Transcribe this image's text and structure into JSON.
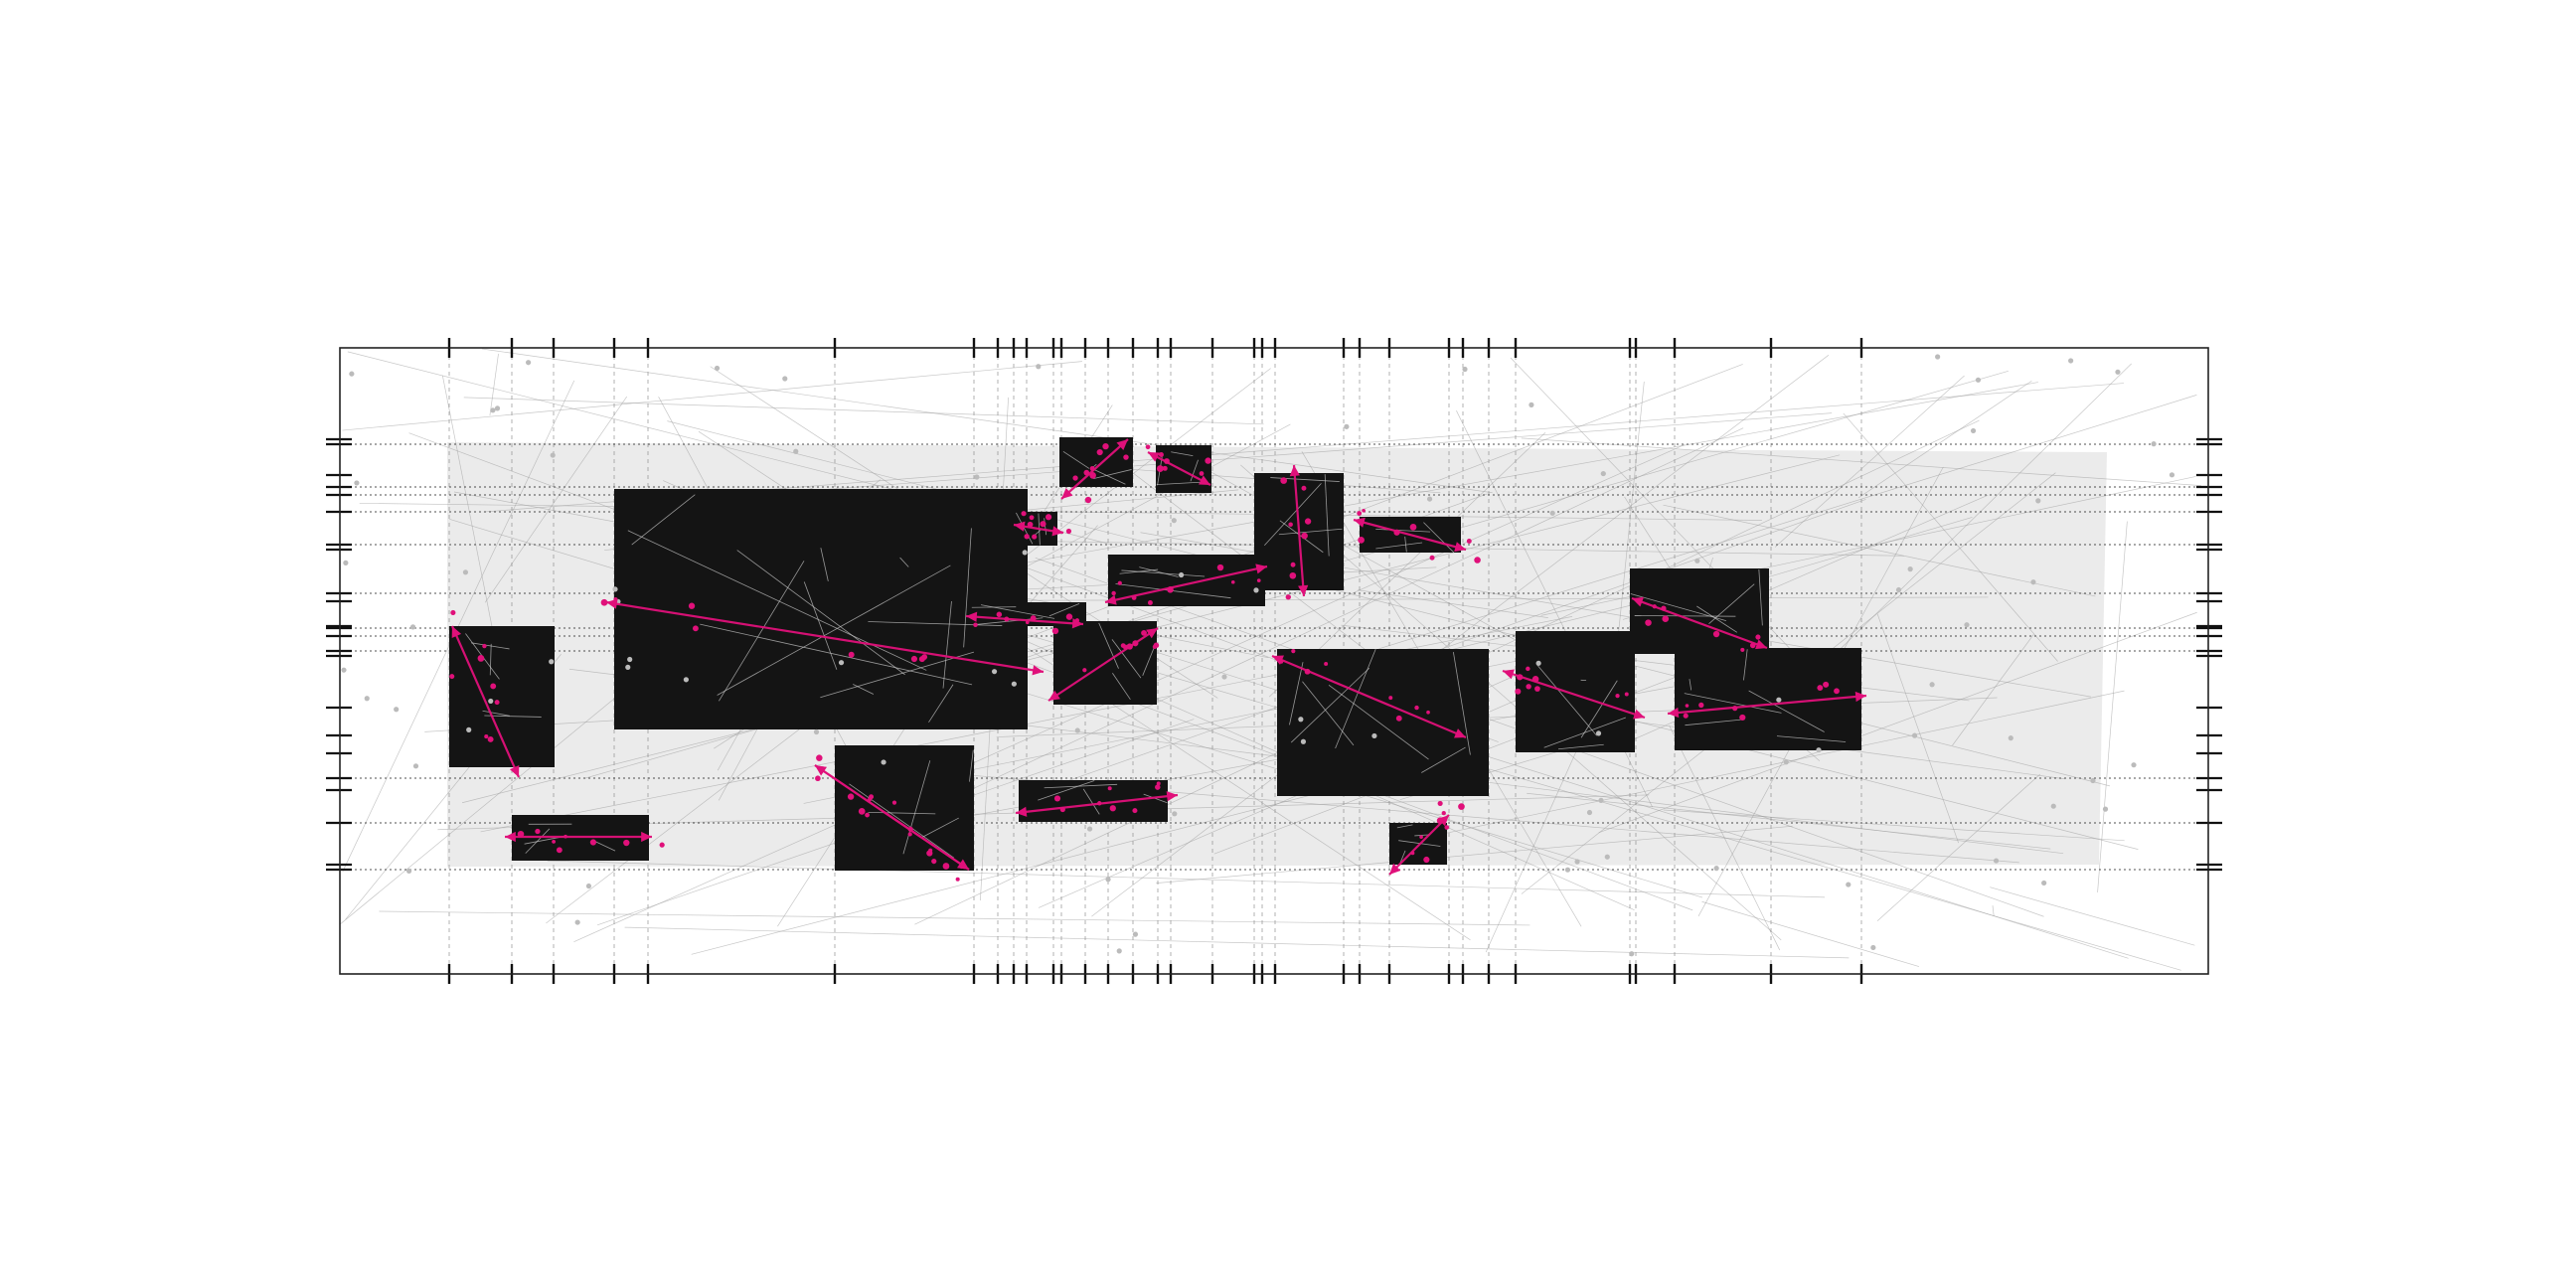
{
  "artwork": {
    "colors": {
      "background": "#ffffff",
      "frame": "#222222",
      "panel": "#ebebeb",
      "block": "#141414",
      "accent": "#e0107a",
      "guide": "#888888",
      "thread": "#9a9a9a",
      "node": "#bbbbbb"
    },
    "icons": {
      "block-mark": "filled-rectangle",
      "vector-mark": "double-arrow-line",
      "tick-mark": "short-bar"
    }
  }
}
